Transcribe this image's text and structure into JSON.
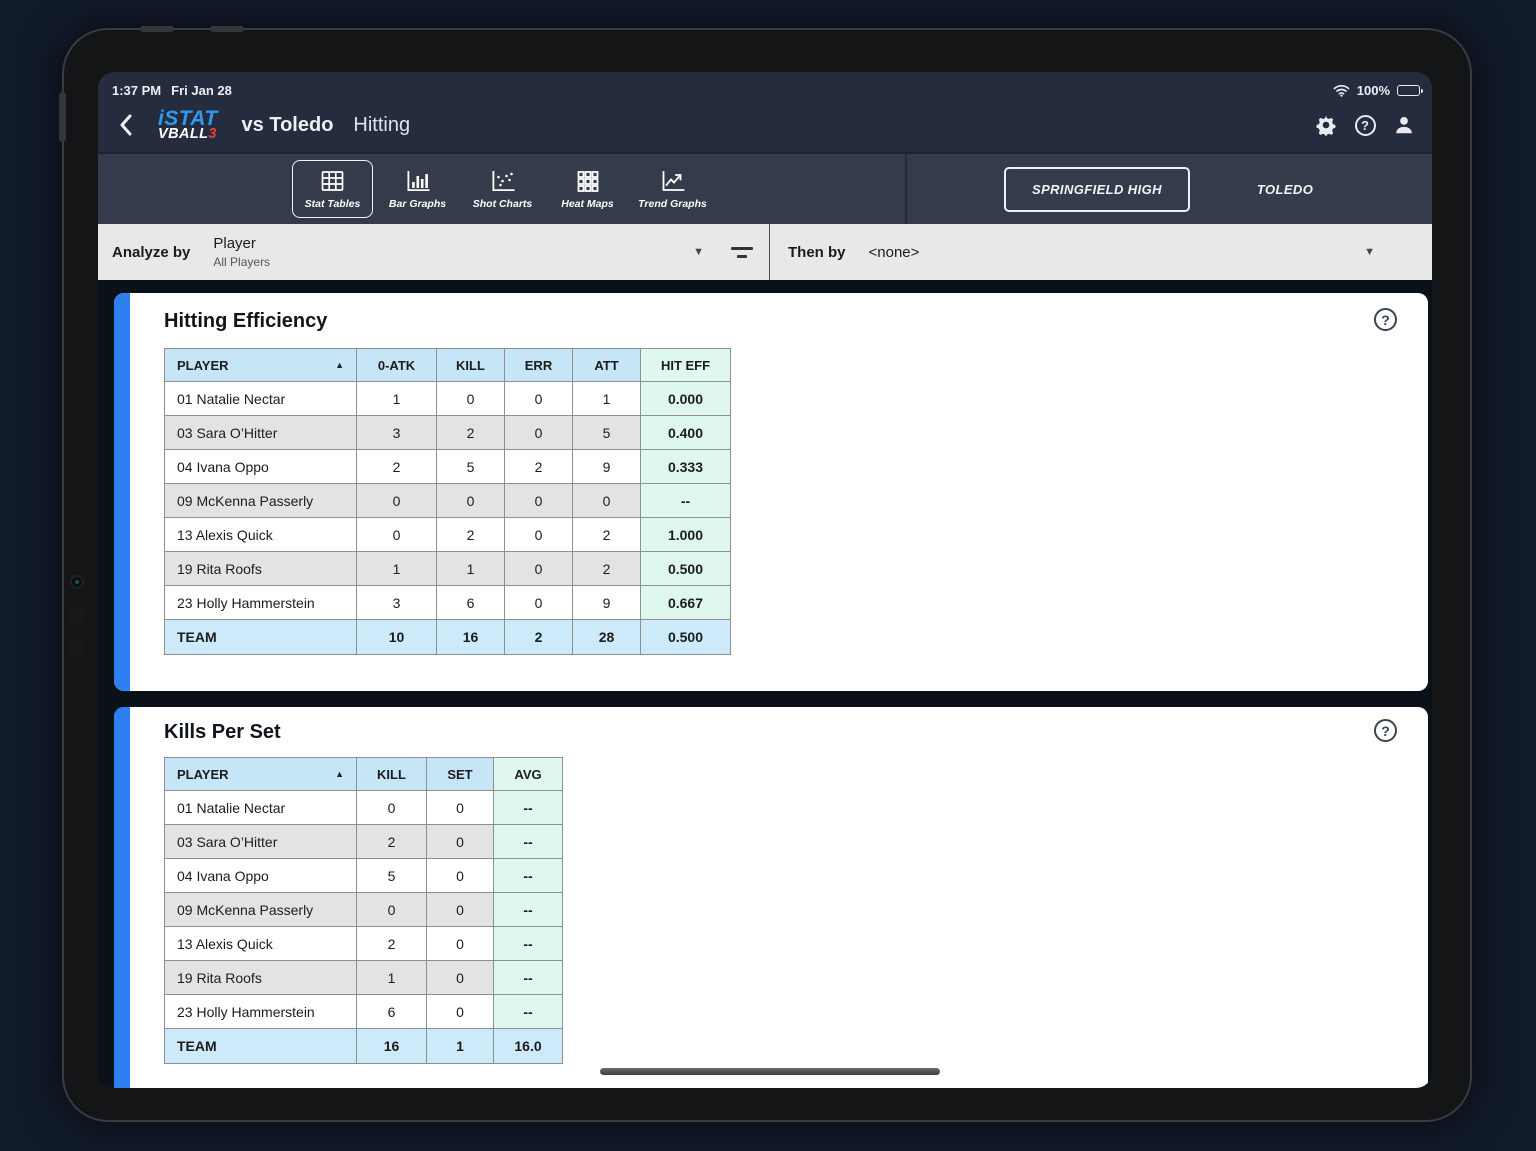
{
  "status_bar": {
    "time": "1:37 PM",
    "date": "Fri Jan 28",
    "battery_percent": "100%"
  },
  "header": {
    "logo_line1": "iSTAT",
    "logo_line2": "VBALL",
    "logo_line2_suffix": "3",
    "match_title": "vs Toledo",
    "section_title": "Hitting"
  },
  "toolbar": {
    "tabs": [
      {
        "label": "Stat Tables",
        "icon": "stat-tables-icon",
        "selected": true
      },
      {
        "label": "Bar Graphs",
        "icon": "bar-graphs-icon",
        "selected": false
      },
      {
        "label": "Shot Charts",
        "icon": "shot-charts-icon",
        "selected": false
      },
      {
        "label": "Heat Maps",
        "icon": "heat-maps-icon",
        "selected": false
      },
      {
        "label": "Trend Graphs",
        "icon": "trend-graphs-icon",
        "selected": false
      }
    ],
    "teams": [
      {
        "label": "SPRINGFIELD HIGH",
        "selected": true
      },
      {
        "label": "TOLEDO",
        "selected": false
      }
    ]
  },
  "filters": {
    "analyze_by": {
      "label": "Analyze by",
      "value": "Player",
      "subvalue": "All Players"
    },
    "then_by": {
      "label": "Then by",
      "value": "<none>"
    }
  },
  "icons": {
    "sort_asc": "▲",
    "caret_down": "▼"
  },
  "cards": [
    {
      "title": "Hitting Efficiency",
      "columns": [
        "PLAYER",
        "0-ATK",
        "KILL",
        "ERR",
        "ATT",
        "HIT EFF"
      ],
      "rows": [
        [
          "01 Natalie Nectar",
          "1",
          "0",
          "0",
          "1",
          "0.000"
        ],
        [
          "03 Sara O’Hitter",
          "3",
          "2",
          "0",
          "5",
          "0.400"
        ],
        [
          "04 Ivana Oppo",
          "2",
          "5",
          "2",
          "9",
          "0.333"
        ],
        [
          "09 McKenna Passerly",
          "0",
          "0",
          "0",
          "0",
          "--"
        ],
        [
          "13 Alexis Quick",
          "0",
          "2",
          "0",
          "2",
          "1.000"
        ],
        [
          "19 Rita Roofs",
          "1",
          "1",
          "0",
          "2",
          "0.500"
        ],
        [
          "23 Holly Hammerstein",
          "3",
          "6",
          "0",
          "9",
          "0.667"
        ]
      ],
      "team_row": [
        "TEAM",
        "10",
        "16",
        "2",
        "28",
        "0.500"
      ]
    },
    {
      "title": "Kills Per Set",
      "columns": [
        "PLAYER",
        "KILL",
        "SET",
        "AVG"
      ],
      "rows": [
        [
          "01 Natalie Nectar",
          "0",
          "0",
          "--"
        ],
        [
          "03 Sara O’Hitter",
          "2",
          "0",
          "--"
        ],
        [
          "04 Ivana Oppo",
          "5",
          "0",
          "--"
        ],
        [
          "09 McKenna Passerly",
          "0",
          "0",
          "--"
        ],
        [
          "13 Alexis Quick",
          "2",
          "0",
          "--"
        ],
        [
          "19 Rita Roofs",
          "1",
          "0",
          "--"
        ],
        [
          "23 Holly Hammerstein",
          "6",
          "0",
          "--"
        ]
      ],
      "team_row": [
        "TEAM",
        "16",
        "1",
        "16.0"
      ]
    }
  ],
  "colors": {
    "accent_blue": "#2e7ff2",
    "header_blue": "#c6e6f8",
    "mint": "#def7ef",
    "team_row_blue": "#cceaf9",
    "row_alt_gray": "#e3e3e3",
    "top_bar": "#242c3d",
    "tab_bar": "#343c4b",
    "filter_bar": "#e8e8e7",
    "content_bg": "#0a1119",
    "logo_blue": "#2e9af0",
    "logo_red": "#e8413c"
  }
}
